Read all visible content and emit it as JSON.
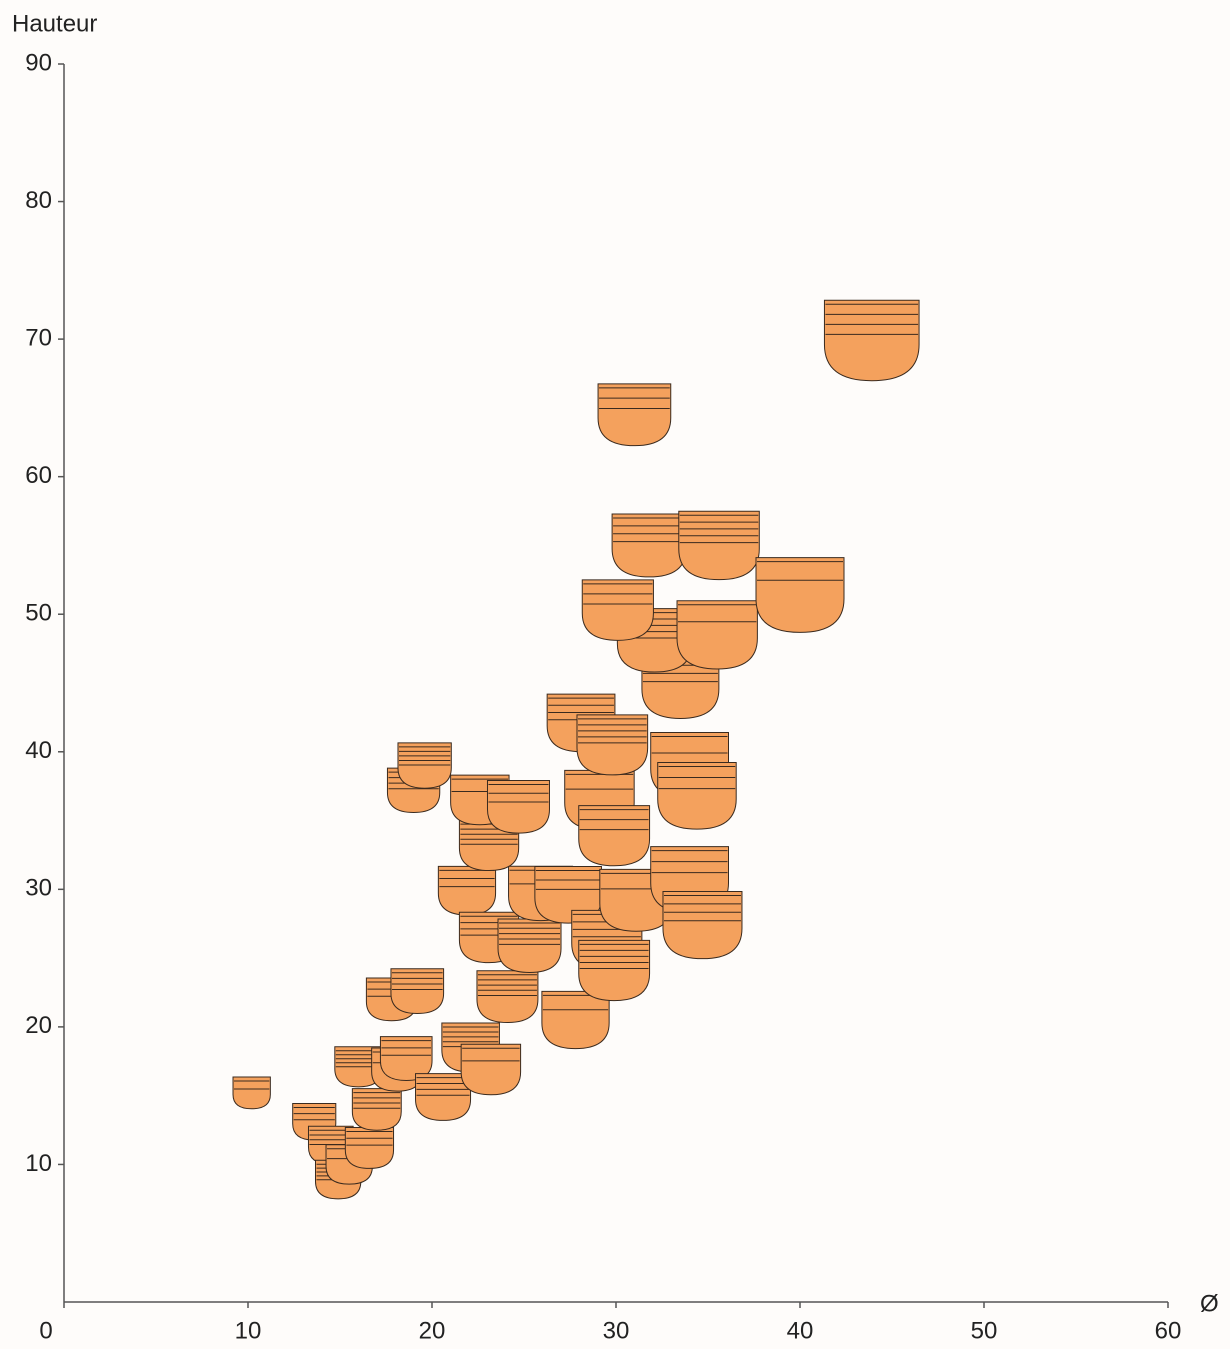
{
  "chart_data": {
    "type": "scatter",
    "y_label": "Hauteur",
    "x_label": "Ø",
    "color": "#f4a15d",
    "xlim": [
      0,
      60
    ],
    "xticks": [
      0,
      10,
      20,
      30,
      40,
      50,
      60
    ],
    "ylim": [
      0,
      90
    ],
    "yticks": [
      10,
      20,
      30,
      40,
      50,
      60,
      70,
      80,
      90
    ],
    "x": [
      10.2,
      13.6,
      14.5,
      14.9,
      15.5,
      16.6,
      17.0,
      16.0,
      18.1,
      18.6,
      20.6,
      22.1,
      23.2,
      17.8,
      19.2,
      24.1,
      27.8,
      21.9,
      23.1,
      25.3,
      25.9,
      27.4,
      29.5,
      29.9,
      31.1,
      34.0,
      34.7,
      23.1,
      22.6,
      24.7,
      19.0,
      19.6,
      29.1,
      29.9,
      28.1,
      29.8,
      34.0,
      34.4,
      33.5,
      32.1,
      35.5,
      30.1,
      31.8,
      35.6,
      40.0,
      31.0,
      43.9
    ],
    "values": [
      15.2,
      13.1,
      11.4,
      8.9,
      10.0,
      11.2,
      14.0,
      17.1,
      16.9,
      17.7,
      14.9,
      18.5,
      16.9,
      22.0,
      22.6,
      22.2,
      20.5,
      29.9,
      26.5,
      25.9,
      29.7,
      29.6,
      26.3,
      24.1,
      29.2,
      30.7,
      27.4,
      33.2,
      36.5,
      36.0,
      37.2,
      39.0,
      36.5,
      33.9,
      42.1,
      40.5,
      39.0,
      36.8,
      44.8,
      48.1,
      48.5,
      50.3,
      55.0,
      55.0,
      51.4,
      64.5,
      69.9
    ]
  }
}
